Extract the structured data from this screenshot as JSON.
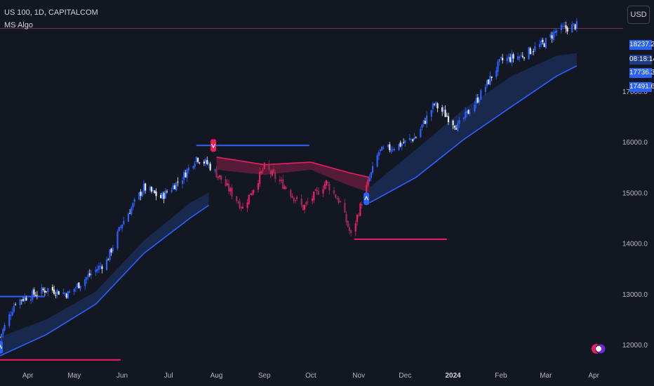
{
  "header": {
    "symbol": "US 100, 1D, CAPITALCOM",
    "indicator": "MS Algo"
  },
  "currency_button": "USD",
  "price_tags": [
    {
      "label": "18237.2",
      "kind": "last"
    },
    {
      "label": "08:18:14",
      "kind": "countdown"
    },
    {
      "label": "17736.3",
      "kind": "band"
    },
    {
      "label": "17491.6",
      "kind": "band"
    }
  ],
  "colors": {
    "background": "#131722",
    "bull": "#2962ff",
    "bear": "#e91e63",
    "bear_candle": "#9c2a58",
    "band_bull": "#1b2a52",
    "band_bear": "#5e1c3a",
    "grid_text": "#b2b5be"
  },
  "chart_data": {
    "type": "candlestick",
    "title": "",
    "xlabel": "",
    "ylabel": "",
    "ylim": [
      11600,
      18800
    ],
    "y_ticks": [
      {
        "value": 17000,
        "label": "17000.0"
      },
      {
        "value": 16000,
        "label": "16000.0"
      },
      {
        "value": 15000,
        "label": "15000.0"
      },
      {
        "value": 14000,
        "label": "14000.0"
      },
      {
        "value": 13000,
        "label": "13000.0"
      },
      {
        "value": 12000,
        "label": "12000.0"
      }
    ],
    "x_ticks": [
      {
        "date": "2023-04-01",
        "label": "Apr"
      },
      {
        "date": "2023-05-01",
        "label": "May"
      },
      {
        "date": "2023-06-01",
        "label": "Jun"
      },
      {
        "date": "2023-07-01",
        "label": "Jul"
      },
      {
        "date": "2023-08-01",
        "label": "Aug"
      },
      {
        "date": "2023-09-01",
        "label": "Sep"
      },
      {
        "date": "2023-10-01",
        "label": "Oct"
      },
      {
        "date": "2023-11-01",
        "label": "Nov"
      },
      {
        "date": "2023-12-01",
        "label": "Dec"
      },
      {
        "date": "2024-01-01",
        "label": "2024"
      },
      {
        "date": "2024-02-01",
        "label": "Feb"
      },
      {
        "date": "2024-03-01",
        "label": "Mar"
      },
      {
        "date": "2024-04-01",
        "label": "Apr"
      }
    ],
    "xlim": [
      "2023-03-14",
      "2024-04-20"
    ],
    "close_path": [
      {
        "date": "2023-03-14",
        "close": 12150
      },
      {
        "date": "2023-03-24",
        "close": 12850
      },
      {
        "date": "2023-04-05",
        "close": 13000
      },
      {
        "date": "2023-04-14",
        "close": 13100
      },
      {
        "date": "2023-04-27",
        "close": 13000
      },
      {
        "date": "2023-05-08",
        "close": 13300
      },
      {
        "date": "2023-05-22",
        "close": 13650
      },
      {
        "date": "2023-06-01",
        "close": 14400
      },
      {
        "date": "2023-06-15",
        "close": 15100
      },
      {
        "date": "2023-06-26",
        "close": 14900
      },
      {
        "date": "2023-07-10",
        "close": 15300
      },
      {
        "date": "2023-07-19",
        "close": 15700
      },
      {
        "date": "2023-07-27",
        "close": 15550
      },
      {
        "date": "2023-08-03",
        "close": 15300
      },
      {
        "date": "2023-08-18",
        "close": 14700
      },
      {
        "date": "2023-09-01",
        "close": 15500
      },
      {
        "date": "2023-09-15",
        "close": 15100
      },
      {
        "date": "2023-09-26",
        "close": 14700
      },
      {
        "date": "2023-10-11",
        "close": 15200
      },
      {
        "date": "2023-10-20",
        "close": 14800
      },
      {
        "date": "2023-10-27",
        "close": 14150
      },
      {
        "date": "2023-11-06",
        "close": 15100
      },
      {
        "date": "2023-11-14",
        "close": 15800
      },
      {
        "date": "2023-11-28",
        "close": 15950
      },
      {
        "date": "2023-12-08",
        "close": 16100
      },
      {
        "date": "2023-12-20",
        "close": 16750
      },
      {
        "date": "2024-01-04",
        "close": 16300
      },
      {
        "date": "2024-01-17",
        "close": 16850
      },
      {
        "date": "2024-02-01",
        "close": 17600
      },
      {
        "date": "2024-02-14",
        "close": 17700
      },
      {
        "date": "2024-02-29",
        "close": 17950
      },
      {
        "date": "2024-03-08",
        "close": 18200
      },
      {
        "date": "2024-03-21",
        "close": 18300
      }
    ],
    "trend_band": [
      {
        "date": "2023-03-14",
        "upper": 12150,
        "lower": 11780
      },
      {
        "date": "2023-04-13",
        "upper": 12500,
        "lower": 12200
      },
      {
        "date": "2023-05-15",
        "upper": 13050,
        "lower": 12800
      },
      {
        "date": "2023-06-15",
        "upper": 14050,
        "lower": 13800
      },
      {
        "date": "2023-07-15",
        "upper": 14800,
        "lower": 14500
      },
      {
        "date": "2023-07-27",
        "upper": 15000,
        "lower": 14750
      },
      {
        "date": "2023-08-01",
        "upper": 15700,
        "lower": 15450
      },
      {
        "date": "2023-09-01",
        "upper": 15550,
        "lower": 15350
      },
      {
        "date": "2023-10-01",
        "upper": 15600,
        "lower": 15450
      },
      {
        "date": "2023-10-25",
        "upper": 15400,
        "lower": 15150
      },
      {
        "date": "2023-11-08",
        "upper": 15300,
        "lower": 15000
      },
      {
        "date": "2023-11-08",
        "upper": 15100,
        "lower": 14800
      },
      {
        "date": "2023-12-08",
        "upper": 15850,
        "lower": 15300
      },
      {
        "date": "2024-01-08",
        "upper": 16650,
        "lower": 16050
      },
      {
        "date": "2024-02-08",
        "upper": 17300,
        "lower": 16700
      },
      {
        "date": "2024-03-08",
        "upper": 17700,
        "lower": 17300
      },
      {
        "date": "2024-03-21",
        "upper": 17750,
        "lower": 17500
      }
    ],
    "structure_lines": [
      {
        "from": "2023-03-14",
        "to": "2023-04-12",
        "y": 12950,
        "color": "bull"
      },
      {
        "from": "2023-03-14",
        "to": "2023-05-31",
        "y": 11700,
        "color": "bear"
      },
      {
        "from": "2023-07-19",
        "to": "2023-09-30",
        "y": 15930,
        "color": "bull"
      },
      {
        "from": "2023-10-29",
        "to": "2023-12-28",
        "y": 14080,
        "color": "bear"
      }
    ],
    "signals": [
      {
        "date": "2023-03-14",
        "y": 11950,
        "direction": "up"
      },
      {
        "date": "2023-07-30",
        "y": 15930,
        "direction": "down"
      },
      {
        "date": "2023-11-06",
        "y": 14880,
        "direction": "up"
      }
    ],
    "last_price_line": 18237.2
  }
}
